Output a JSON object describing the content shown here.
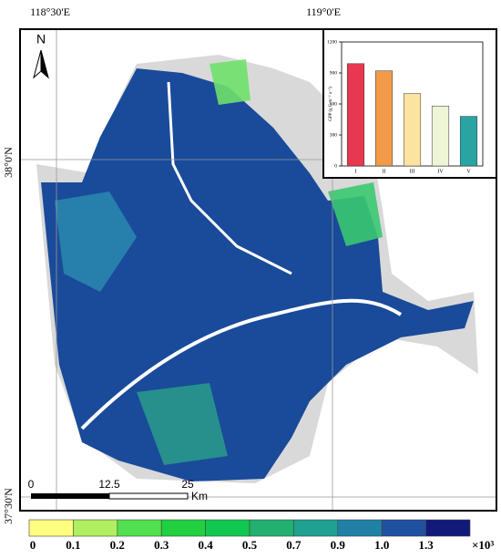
{
  "map": {
    "longitude_labels": [
      "118°30'E",
      "119°0'E"
    ],
    "latitude_labels": [
      "38°0'N",
      "37°30'N"
    ],
    "north": "N",
    "scale_bar": {
      "labels": [
        "0",
        "12.5",
        "25"
      ],
      "unit": "Km"
    },
    "legend": {
      "labels": [
        "0",
        "0.1",
        "0.2",
        "0.3",
        "0.4",
        "0.5",
        "0.7",
        "0.9",
        "1.0",
        "1.3"
      ],
      "multiplier": "×10³",
      "colors": [
        "#ffff80",
        "#b0f060",
        "#50e050",
        "#20d040",
        "#10c850",
        "#20b070",
        "#20a090",
        "#2080a8",
        "#2050a0",
        "#101a78"
      ]
    }
  },
  "chart_data": {
    "type": "bar",
    "y_label": "GPP (g C m⁻² a⁻¹)",
    "categories": [
      "I",
      "II",
      "III",
      "IV",
      "V"
    ],
    "values": [
      990,
      920,
      700,
      580,
      480
    ],
    "colors": [
      "#e8384f",
      "#f39a4a",
      "#fde3a0",
      "#eef5d6",
      "#2aa3a3"
    ],
    "ylim": [
      0,
      1200
    ],
    "yticks": [
      0,
      300,
      600,
      900,
      1200
    ]
  }
}
